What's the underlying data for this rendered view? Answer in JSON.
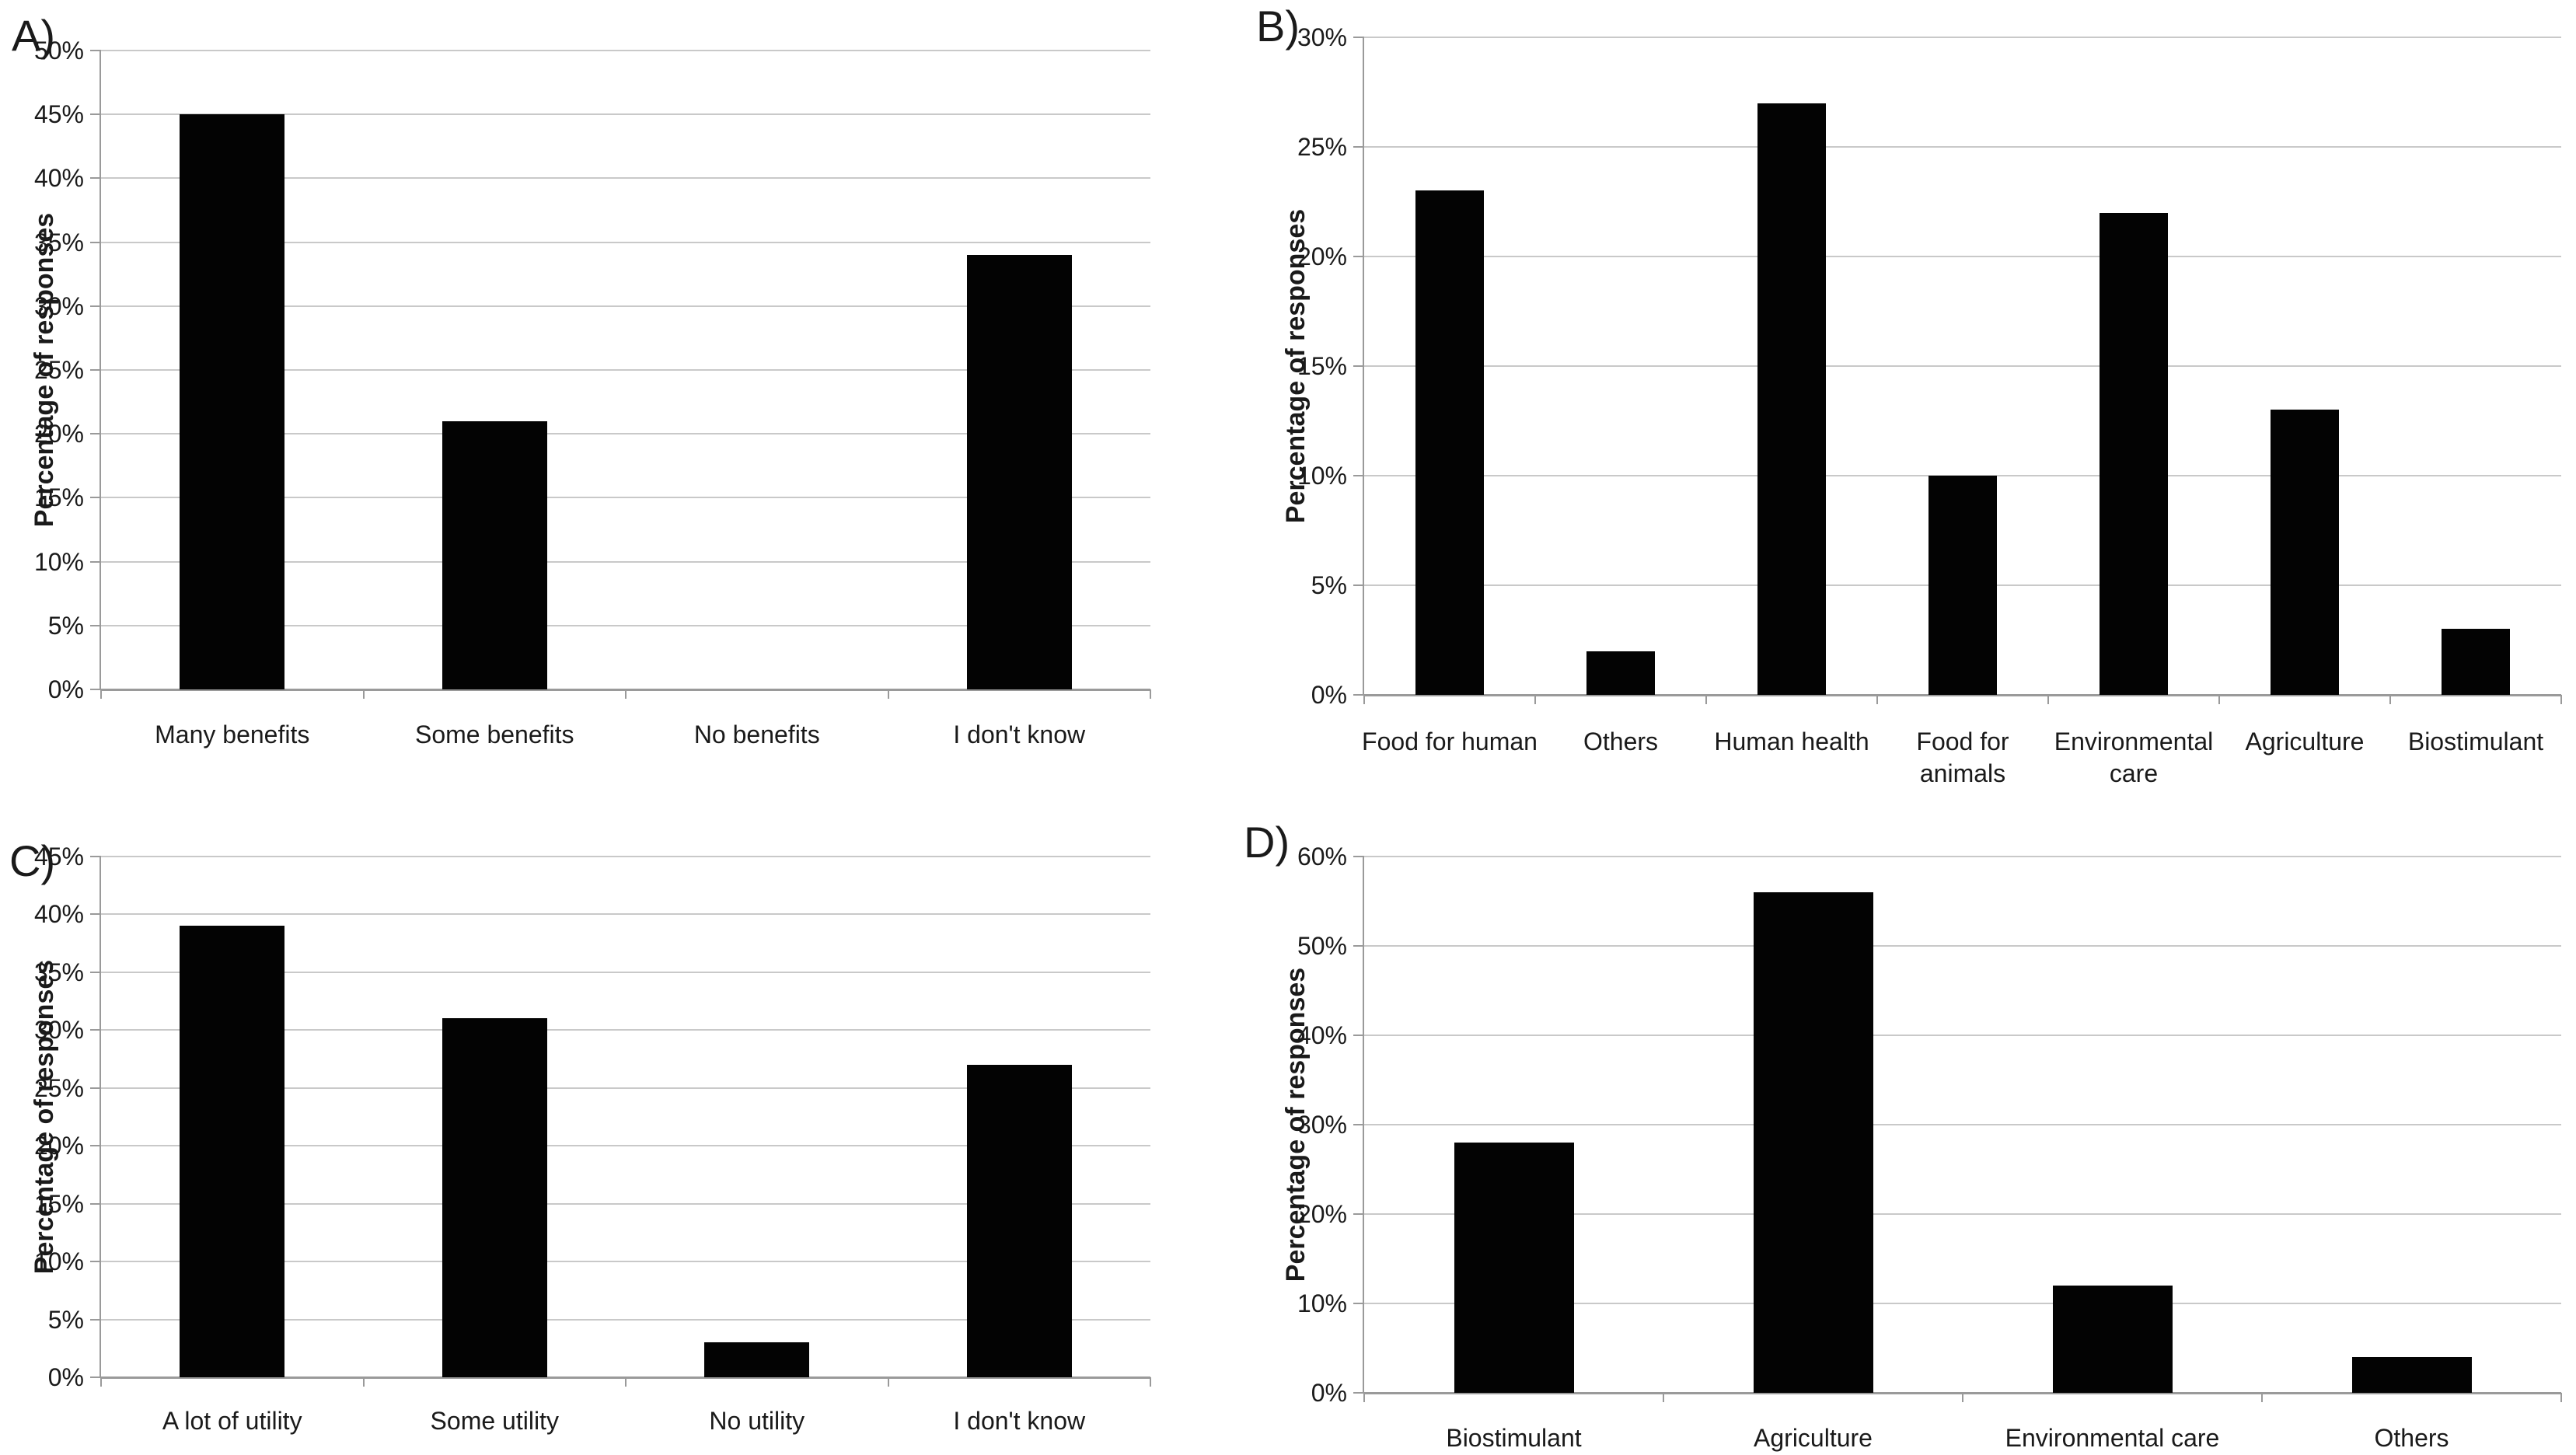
{
  "figure": {
    "description": "Four-panel black bar chart figure of survey results",
    "shared_ylabel": "Percentage of responses"
  },
  "style": {
    "bar_color": "#030303",
    "grid_color": "#c9c9c9",
    "axis_color": "#9a9a9a",
    "text_color": "#1a1a1a",
    "background": "#ffffff"
  },
  "chart_data": [
    {
      "type": "bar",
      "panel_label": "A)",
      "title": "",
      "xlabel": "",
      "ylabel": "Percentage of responses",
      "ylim": [
        0,
        50
      ],
      "ystep": 5,
      "grid": true,
      "legend": "none",
      "categories": [
        "Many benefits",
        "Some benefits",
        "No benefits",
        "I don't know"
      ],
      "values": [
        45,
        21,
        0,
        34
      ],
      "tick_format": "percent"
    },
    {
      "type": "bar",
      "panel_label": "B)",
      "title": "",
      "xlabel": "",
      "ylabel": "Percentage of responses",
      "ylim": [
        0,
        30
      ],
      "ystep": 5,
      "grid": true,
      "legend": "none",
      "categories": [
        "Food for human",
        "Others",
        "Human health",
        "Food for animals",
        "Environmental care",
        "Agriculture",
        "Biostimulant"
      ],
      "values": [
        23,
        2,
        27,
        10,
        22,
        13,
        3
      ],
      "tick_format": "percent"
    },
    {
      "type": "bar",
      "panel_label": "C)",
      "title": "",
      "xlabel": "",
      "ylabel": "Percentage of responses",
      "ylim": [
        0,
        45
      ],
      "ystep": 5,
      "grid": true,
      "legend": "none",
      "categories": [
        "A lot of utility",
        "Some utility",
        "No utility",
        "I don't know"
      ],
      "values": [
        39,
        31,
        3,
        27
      ],
      "tick_format": "percent"
    },
    {
      "type": "bar",
      "panel_label": "D)",
      "title": "",
      "xlabel": "",
      "ylabel": "Percentage of responses",
      "ylim": [
        0,
        60
      ],
      "ystep": 10,
      "grid": true,
      "legend": "none",
      "categories": [
        "Biostimulant",
        "Agriculture",
        "Environmental care",
        "Others"
      ],
      "values": [
        28,
        56,
        12,
        4
      ],
      "tick_format": "percent"
    }
  ]
}
